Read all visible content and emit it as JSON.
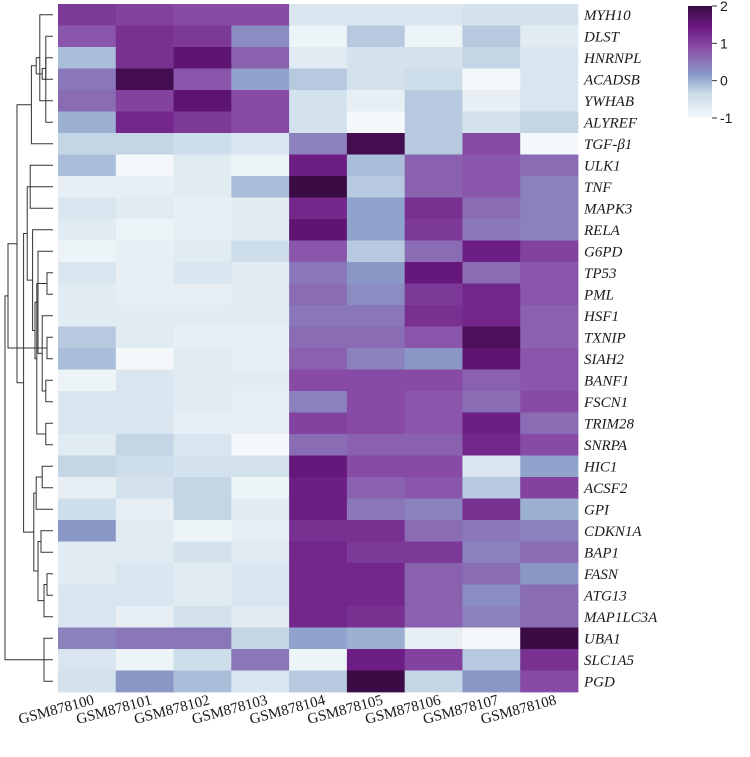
{
  "chart_data": {
    "type": "heatmap",
    "title": "",
    "samples": [
      "GSM878100",
      "GSM878101",
      "GSM878102",
      "GSM878103",
      "GSM878104",
      "GSM878105",
      "GSM878106",
      "GSM878107",
      "GSM878108"
    ],
    "genes": [
      "MYH10",
      "DLST",
      "HNRNPL",
      "ACADSB",
      "YWHAB",
      "ALYREF",
      "TGF-β1",
      "ULK1",
      "TNF",
      "MAPK3",
      "RELA",
      "G6PD",
      "TP53",
      "PML",
      "HSF1",
      "TXNIP",
      "SIAH2",
      "BANF1",
      "FSCN1",
      "TRIM28",
      "SNRPA",
      "HIC1",
      "ACSF2",
      "GPI",
      "CDKN1A",
      "BAP1",
      "FASN",
      "ATG13",
      "MAP1LC3A",
      "UBA1",
      "SLC1A5",
      "PGD"
    ],
    "values": [
      [
        1.1,
        1.0,
        0.9,
        0.9,
        -0.6,
        -0.6,
        -0.6,
        -0.5,
        -0.5
      ],
      [
        0.8,
        1.2,
        1.1,
        0.3,
        -0.9,
        -0.2,
        -0.9,
        -0.2,
        -0.7
      ],
      [
        -0.1,
        1.2,
        1.6,
        0.7,
        -0.7,
        -0.5,
        -0.5,
        -0.3,
        -0.6
      ],
      [
        0.5,
        1.9,
        0.8,
        0.1,
        -0.2,
        -0.5,
        -0.4,
        -1.0,
        -0.6
      ],
      [
        0.6,
        1.0,
        1.6,
        0.9,
        -0.5,
        -0.8,
        -0.2,
        -0.8,
        -0.6
      ],
      [
        0.0,
        1.3,
        1.1,
        0.9,
        -0.5,
        -1.0,
        -0.2,
        -0.5,
        -0.3
      ],
      [
        -0.3,
        -0.3,
        -0.4,
        -0.6,
        0.4,
        1.9,
        -0.2,
        0.9,
        -1.0
      ],
      [
        -0.1,
        -1.0,
        -0.7,
        -0.9,
        1.4,
        -0.1,
        0.7,
        0.8,
        0.6
      ],
      [
        -0.8,
        -0.8,
        -0.7,
        -0.1,
        2.0,
        -0.2,
        0.7,
        0.8,
        0.4
      ],
      [
        -0.6,
        -0.7,
        -0.8,
        -0.7,
        1.3,
        0.1,
        1.2,
        0.6,
        0.4
      ],
      [
        -0.7,
        -0.9,
        -0.8,
        -0.7,
        1.6,
        0.1,
        1.1,
        0.5,
        0.4
      ],
      [
        -0.9,
        -0.8,
        -0.7,
        -0.4,
        0.8,
        -0.2,
        0.6,
        1.4,
        1.0
      ],
      [
        -0.6,
        -0.8,
        -0.6,
        -0.7,
        0.5,
        0.2,
        1.5,
        0.6,
        0.8
      ],
      [
        -0.7,
        -0.8,
        -0.8,
        -0.7,
        0.6,
        0.3,
        1.1,
        1.3,
        0.8
      ],
      [
        -0.7,
        -0.7,
        -0.7,
        -0.7,
        0.5,
        0.5,
        1.2,
        1.3,
        0.7
      ],
      [
        -0.2,
        -0.7,
        -0.8,
        -0.8,
        0.6,
        0.6,
        0.8,
        1.8,
        0.7
      ],
      [
        -0.1,
        -1.0,
        -0.7,
        -0.8,
        0.7,
        0.4,
        0.2,
        1.6,
        0.8
      ],
      [
        -0.9,
        -0.6,
        -0.7,
        -0.7,
        0.9,
        0.9,
        0.9,
        0.7,
        0.8
      ],
      [
        -0.6,
        -0.6,
        -0.7,
        -0.8,
        0.4,
        0.9,
        0.8,
        0.6,
        0.9
      ],
      [
        -0.6,
        -0.6,
        -0.8,
        -0.8,
        1.0,
        0.9,
        0.8,
        1.4,
        0.6
      ],
      [
        -0.7,
        -0.3,
        -0.6,
        -1.0,
        0.6,
        0.7,
        0.7,
        1.3,
        0.9
      ],
      [
        -0.3,
        -0.4,
        -0.5,
        -0.5,
        1.5,
        0.9,
        0.9,
        -0.6,
        0.1
      ],
      [
        -0.8,
        -0.5,
        -0.3,
        -0.9,
        1.4,
        0.7,
        0.8,
        -0.2,
        1.0
      ],
      [
        -0.4,
        -0.8,
        -0.3,
        -0.7,
        1.4,
        0.5,
        0.4,
        1.2,
        0.0
      ],
      [
        0.2,
        -0.7,
        -0.9,
        -0.8,
        1.2,
        1.2,
        0.6,
        0.5,
        0.4
      ],
      [
        -0.7,
        -0.7,
        -0.5,
        -0.7,
        1.3,
        1.1,
        1.1,
        0.4,
        0.6
      ],
      [
        -0.7,
        -0.6,
        -0.7,
        -0.6,
        1.3,
        1.3,
        0.7,
        0.6,
        0.2
      ],
      [
        -0.6,
        -0.6,
        -0.7,
        -0.6,
        1.3,
        1.3,
        0.7,
        0.3,
        0.6
      ],
      [
        -0.6,
        -0.8,
        -0.5,
        -0.7,
        1.3,
        1.2,
        0.7,
        0.4,
        0.6
      ],
      [
        0.4,
        0.5,
        0.5,
        -0.3,
        0.1,
        0.0,
        -0.8,
        -1.0,
        2.1
      ],
      [
        -0.6,
        -0.9,
        -0.4,
        0.5,
        -0.9,
        1.4,
        1.0,
        -0.2,
        1.2
      ],
      [
        -0.5,
        0.2,
        -0.1,
        -0.6,
        -0.2,
        2.4,
        -0.3,
        0.2,
        0.9
      ]
    ],
    "colorbar": {
      "ticks": [
        2,
        1,
        0,
        -1
      ],
      "tick_labels": [
        "2",
        "1",
        "0",
        "-1"
      ],
      "range": [
        -1,
        2
      ]
    },
    "colors": {
      "low": "#f4f8fb",
      "mid_low": "#c9dbe8",
      "mid": "#8a9ec9",
      "mid_high": "#8a4fa8",
      "high": "#6a1880",
      "max": "#3a0b45"
    },
    "legend_position": "top-right",
    "dendrogram_side": "left",
    "dendrogram": [
      [
        1,
        5,
        1.2
      ],
      [
        2,
        3,
        1.2
      ],
      [
        32,
        33,
        1.8
      ],
      [
        0,
        4,
        2.2
      ],
      [
        35,
        34,
        2.8
      ],
      [
        36,
        6,
        3.6
      ],
      [
        15,
        16,
        1.0
      ],
      [
        12,
        13,
        1.0
      ],
      [
        17,
        18,
        1.2
      ],
      [
        19,
        20,
        1.2
      ],
      [
        40,
        14,
        1.8
      ],
      [
        11,
        42,
        2.5
      ],
      [
        39,
        41,
        2.7
      ],
      [
        44,
        43,
        3.0
      ],
      [
        45,
        10,
        3.4
      ],
      [
        9,
        7,
        3.8
      ],
      [
        46,
        8,
        4.3
      ],
      [
        26,
        27,
        1.0
      ],
      [
        28,
        49,
        1.5
      ],
      [
        24,
        25,
        2.0
      ],
      [
        51,
        50,
        2.5
      ],
      [
        21,
        22,
        1.8
      ],
      [
        53,
        23,
        2.8
      ],
      [
        52,
        54,
        3.2
      ],
      [
        48,
        55,
        4.9
      ],
      [
        37,
        56,
        6.0
      ],
      [
        38,
        57,
        7.5
      ],
      [
        29,
        31,
        1.5
      ],
      [
        59,
        30,
        2.5
      ],
      [
        58,
        60,
        8.0
      ]
    ]
  }
}
